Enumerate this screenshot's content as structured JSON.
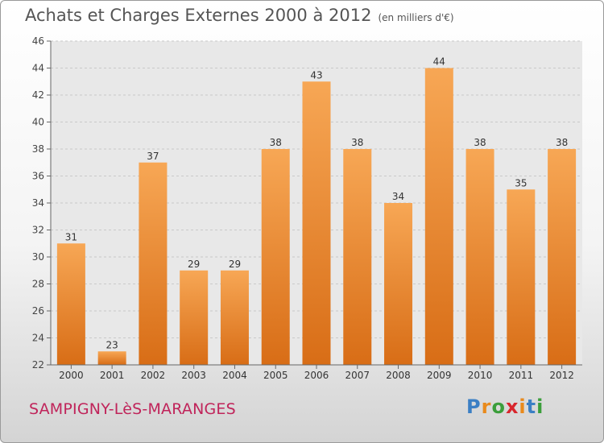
{
  "title": "Achats et Charges Externes 2000 à 2012",
  "unit": "(en milliers d'€)",
  "city": "SAMPIGNY-LèS-MARANGES",
  "logo": {
    "letters": [
      {
        "ch": "P",
        "color": "#3b7fc4"
      },
      {
        "ch": "r",
        "color": "#e98a1c"
      },
      {
        "ch": "o",
        "color": "#3b9e3b"
      },
      {
        "ch": "x",
        "color": "#d8262d"
      },
      {
        "ch": "i",
        "color": "#e98a1c"
      },
      {
        "ch": "t",
        "color": "#3b7fc4"
      },
      {
        "ch": "i",
        "color": "#3b9e3b"
      }
    ]
  },
  "chart_data": {
    "type": "bar",
    "categories": [
      "2000",
      "2001",
      "2002",
      "2003",
      "2004",
      "2005",
      "2006",
      "2007",
      "2008",
      "2009",
      "2010",
      "2011",
      "2012"
    ],
    "values": [
      31,
      23,
      37,
      29,
      29,
      38,
      43,
      38,
      34,
      44,
      38,
      35,
      38
    ],
    "yticks": [
      22,
      24,
      26,
      28,
      30,
      32,
      34,
      36,
      38,
      40,
      42,
      44,
      46
    ],
    "ylim": [
      22,
      46
    ],
    "grid": true,
    "bar_color": "#ee8a2e"
  }
}
